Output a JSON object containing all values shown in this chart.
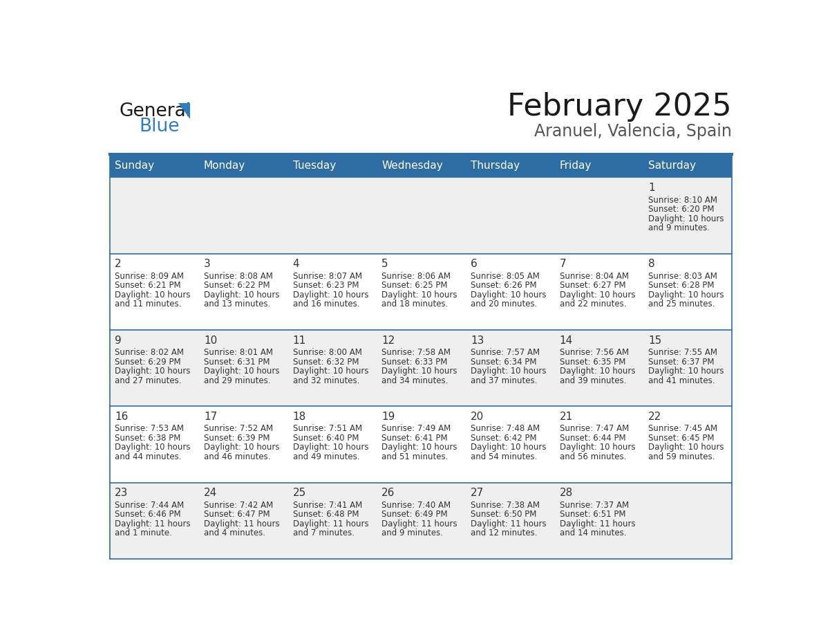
{
  "title": "February 2025",
  "subtitle": "Aranuel, Valencia, Spain",
  "header_bg": "#2D6DA4",
  "header_text_color": "#FFFFFF",
  "cell_bg": "#EFEFEF",
  "cell_bg_white": "#FFFFFF",
  "day_number_color": "#333333",
  "cell_text_color": "#333333",
  "grid_color": "#2D6DA4",
  "days_of_week": [
    "Sunday",
    "Monday",
    "Tuesday",
    "Wednesday",
    "Thursday",
    "Friday",
    "Saturday"
  ],
  "logo_color1": "#1A1A1A",
  "logo_color2": "#2E7EC1",
  "logo_triangle_color": "#2E7EC1",
  "title_color": "#1A1A1A",
  "subtitle_color": "#555555",
  "calendar_data": [
    [
      null,
      null,
      null,
      null,
      null,
      null,
      {
        "day": 1,
        "sunrise": "8:10 AM",
        "sunset": "6:20 PM",
        "daylight_hours": 10,
        "daylight_minutes": 9
      }
    ],
    [
      {
        "day": 2,
        "sunrise": "8:09 AM",
        "sunset": "6:21 PM",
        "daylight_hours": 10,
        "daylight_minutes": 11
      },
      {
        "day": 3,
        "sunrise": "8:08 AM",
        "sunset": "6:22 PM",
        "daylight_hours": 10,
        "daylight_minutes": 13
      },
      {
        "day": 4,
        "sunrise": "8:07 AM",
        "sunset": "6:23 PM",
        "daylight_hours": 10,
        "daylight_minutes": 16
      },
      {
        "day": 5,
        "sunrise": "8:06 AM",
        "sunset": "6:25 PM",
        "daylight_hours": 10,
        "daylight_minutes": 18
      },
      {
        "day": 6,
        "sunrise": "8:05 AM",
        "sunset": "6:26 PM",
        "daylight_hours": 10,
        "daylight_minutes": 20
      },
      {
        "day": 7,
        "sunrise": "8:04 AM",
        "sunset": "6:27 PM",
        "daylight_hours": 10,
        "daylight_minutes": 22
      },
      {
        "day": 8,
        "sunrise": "8:03 AM",
        "sunset": "6:28 PM",
        "daylight_hours": 10,
        "daylight_minutes": 25
      }
    ],
    [
      {
        "day": 9,
        "sunrise": "8:02 AM",
        "sunset": "6:29 PM",
        "daylight_hours": 10,
        "daylight_minutes": 27
      },
      {
        "day": 10,
        "sunrise": "8:01 AM",
        "sunset": "6:31 PM",
        "daylight_hours": 10,
        "daylight_minutes": 29
      },
      {
        "day": 11,
        "sunrise": "8:00 AM",
        "sunset": "6:32 PM",
        "daylight_hours": 10,
        "daylight_minutes": 32
      },
      {
        "day": 12,
        "sunrise": "7:58 AM",
        "sunset": "6:33 PM",
        "daylight_hours": 10,
        "daylight_minutes": 34
      },
      {
        "day": 13,
        "sunrise": "7:57 AM",
        "sunset": "6:34 PM",
        "daylight_hours": 10,
        "daylight_minutes": 37
      },
      {
        "day": 14,
        "sunrise": "7:56 AM",
        "sunset": "6:35 PM",
        "daylight_hours": 10,
        "daylight_minutes": 39
      },
      {
        "day": 15,
        "sunrise": "7:55 AM",
        "sunset": "6:37 PM",
        "daylight_hours": 10,
        "daylight_minutes": 41
      }
    ],
    [
      {
        "day": 16,
        "sunrise": "7:53 AM",
        "sunset": "6:38 PM",
        "daylight_hours": 10,
        "daylight_minutes": 44
      },
      {
        "day": 17,
        "sunrise": "7:52 AM",
        "sunset": "6:39 PM",
        "daylight_hours": 10,
        "daylight_minutes": 46
      },
      {
        "day": 18,
        "sunrise": "7:51 AM",
        "sunset": "6:40 PM",
        "daylight_hours": 10,
        "daylight_minutes": 49
      },
      {
        "day": 19,
        "sunrise": "7:49 AM",
        "sunset": "6:41 PM",
        "daylight_hours": 10,
        "daylight_minutes": 51
      },
      {
        "day": 20,
        "sunrise": "7:48 AM",
        "sunset": "6:42 PM",
        "daylight_hours": 10,
        "daylight_minutes": 54
      },
      {
        "day": 21,
        "sunrise": "7:47 AM",
        "sunset": "6:44 PM",
        "daylight_hours": 10,
        "daylight_minutes": 56
      },
      {
        "day": 22,
        "sunrise": "7:45 AM",
        "sunset": "6:45 PM",
        "daylight_hours": 10,
        "daylight_minutes": 59
      }
    ],
    [
      {
        "day": 23,
        "sunrise": "7:44 AM",
        "sunset": "6:46 PM",
        "daylight_hours": 11,
        "daylight_minutes": 1
      },
      {
        "day": 24,
        "sunrise": "7:42 AM",
        "sunset": "6:47 PM",
        "daylight_hours": 11,
        "daylight_minutes": 4
      },
      {
        "day": 25,
        "sunrise": "7:41 AM",
        "sunset": "6:48 PM",
        "daylight_hours": 11,
        "daylight_minutes": 7
      },
      {
        "day": 26,
        "sunrise": "7:40 AM",
        "sunset": "6:49 PM",
        "daylight_hours": 11,
        "daylight_minutes": 9
      },
      {
        "day": 27,
        "sunrise": "7:38 AM",
        "sunset": "6:50 PM",
        "daylight_hours": 11,
        "daylight_minutes": 12
      },
      {
        "day": 28,
        "sunrise": "7:37 AM",
        "sunset": "6:51 PM",
        "daylight_hours": 11,
        "daylight_minutes": 14
      },
      null
    ]
  ]
}
